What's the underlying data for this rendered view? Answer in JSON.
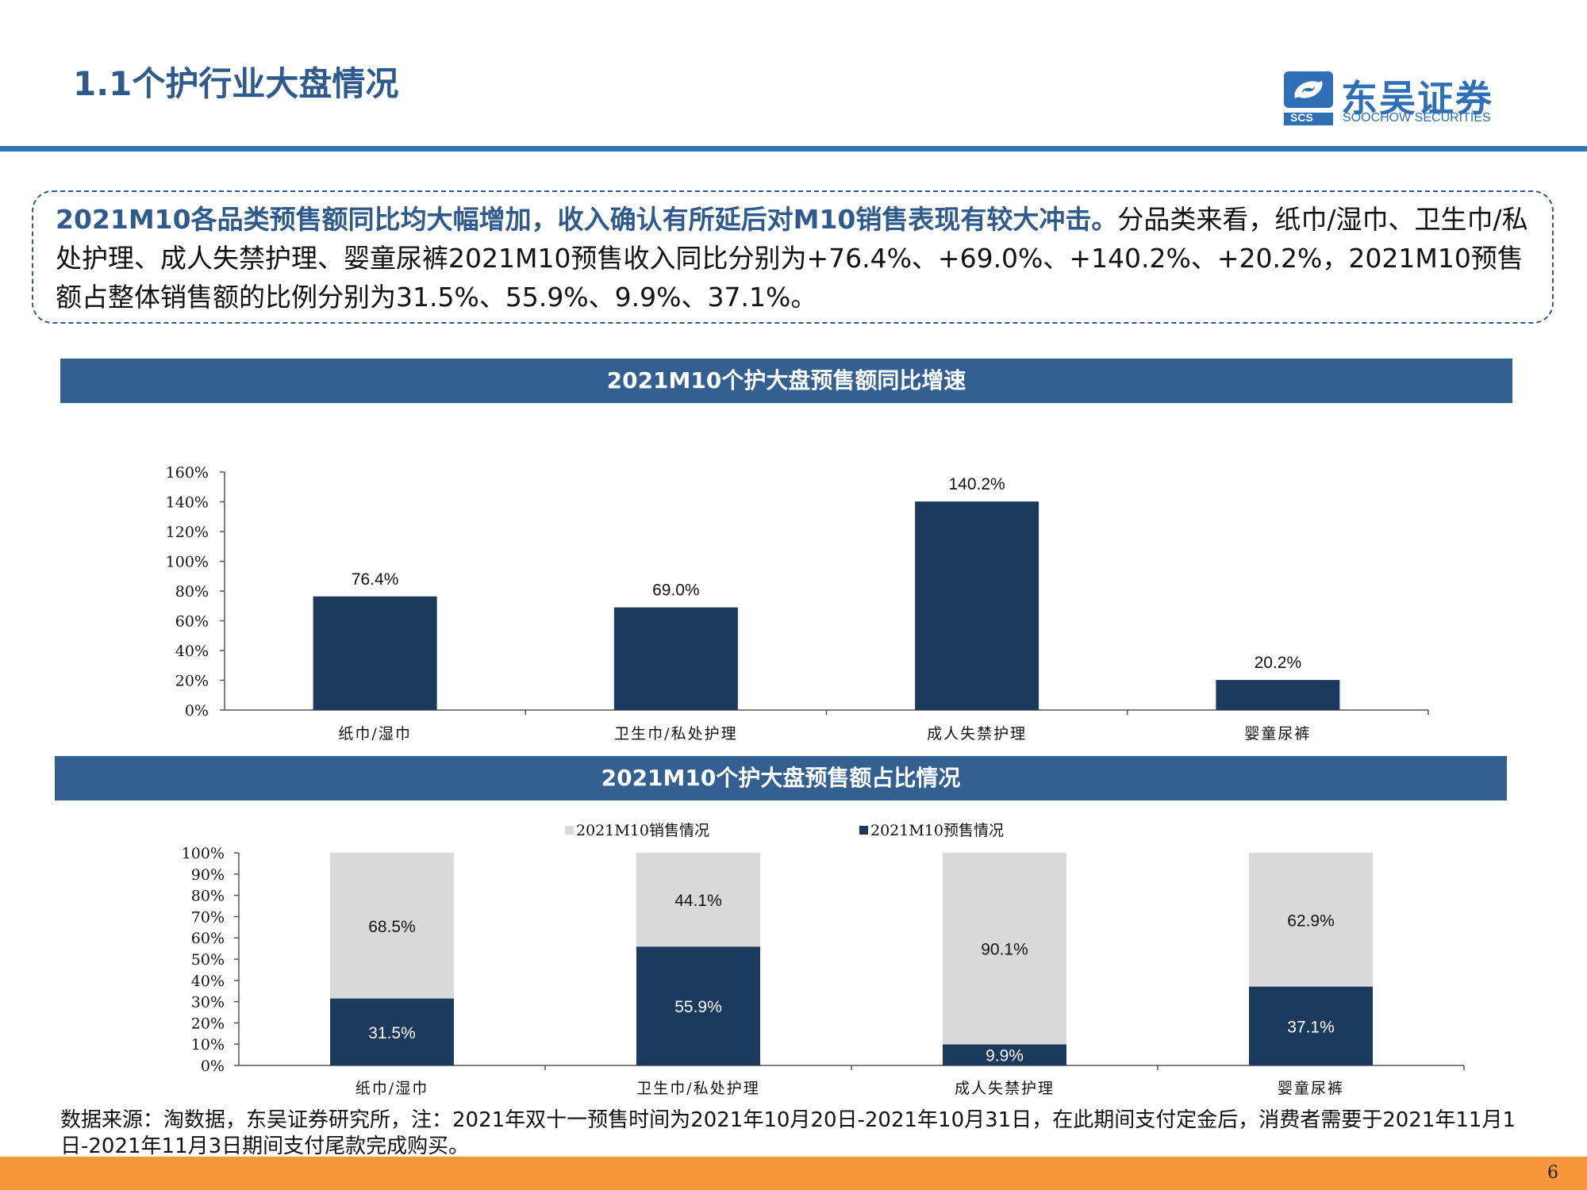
{
  "header": {
    "title": "1.1个护行业大盘情况",
    "logo_cn": "东吴证券",
    "logo_en": "SOOCHOW SECURITIES",
    "logo_mark_text": "SCS"
  },
  "summary": {
    "strong": "2021M10各品类预售额同比均大幅增加，收入确认有所延后对M10销售表现有较大冲击。",
    "body": "分品类来看，纸巾/湿巾、卫生巾/私处护理、成人失禁护理、婴童尿裤2021M10预售收入同比分别为+76.4%、+69.0%、+140.2%、+20.2%，2021M10预售额占整体销售额的比例分别为31.5%、55.9%、9.9%、37.1%。"
  },
  "chart_data": [
    {
      "type": "bar",
      "title": "2021M10个护大盘预售额同比增速",
      "categories": [
        "纸巾/湿巾",
        "卫生巾/私处护理",
        "成人失禁护理",
        "婴童尿裤"
      ],
      "values": [
        76.4,
        69.0,
        140.2,
        20.2
      ],
      "value_labels": [
        "76.4%",
        "69.0%",
        "140.2%",
        "20.2%"
      ],
      "ylim": [
        0,
        160
      ],
      "yticks": [
        "0%",
        "20%",
        "40%",
        "60%",
        "80%",
        "100%",
        "120%",
        "140%",
        "160%"
      ],
      "bar_color": "#1b3a5e",
      "grid": false
    },
    {
      "type": "bar",
      "stacked": true,
      "title": "2021M10个护大盘预售额占比情况",
      "categories": [
        "纸巾/湿巾",
        "卫生巾/私处护理",
        "成人失禁护理",
        "婴童尿裤"
      ],
      "series": [
        {
          "name": "2021M10预售情况",
          "values": [
            31.5,
            55.9,
            9.9,
            37.1
          ],
          "labels": [
            "31.5%",
            "55.9%",
            "9.9%",
            "37.1%"
          ],
          "color": "#1b3a5e"
        },
        {
          "name": "2021M10销售情况",
          "values": [
            68.5,
            44.1,
            90.1,
            62.9
          ],
          "labels": [
            "68.5%",
            "44.1%",
            "90.1%",
            "62.9%"
          ],
          "color": "#d9d9d9"
        }
      ],
      "legend_order": [
        "2021M10销售情况",
        "2021M10预售情况"
      ],
      "legend_position": "top",
      "ylim": [
        0,
        100
      ],
      "yticks": [
        "0%",
        "10%",
        "20%",
        "30%",
        "40%",
        "50%",
        "60%",
        "70%",
        "80%",
        "90%",
        "100%"
      ],
      "grid": false
    }
  ],
  "source_note": "数据来源：淘数据，东吴证券研究所，注：2021年双十一预售时间为2021年10月20日-2021年10月31日，在此期间支付定金后，消费者需要于2021年11月1日-2021年11月3日期间支付尾款完成购买。",
  "page_number": "6"
}
